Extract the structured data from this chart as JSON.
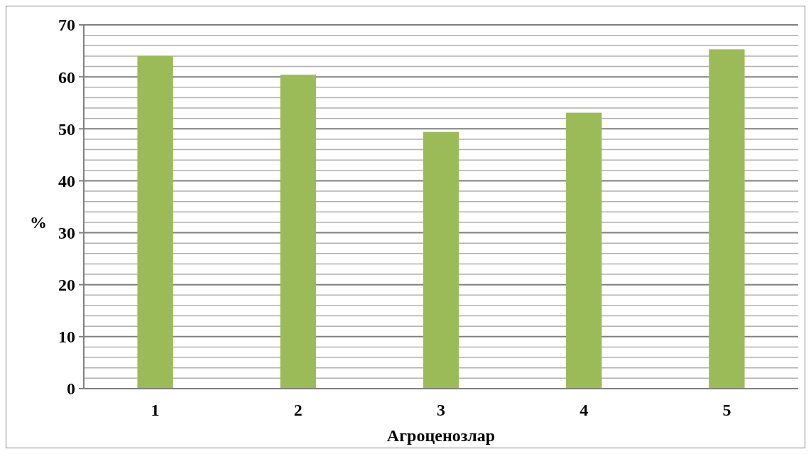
{
  "chart_data": {
    "type": "bar",
    "xlabel": "Агроценозлар",
    "ylabel": "%",
    "categories": [
      "1",
      "2",
      "3",
      "4",
      "5"
    ],
    "values": [
      64.0,
      60.4,
      49.4,
      53.1,
      65.3
    ],
    "color": "#9bbb59",
    "ylim": [
      0,
      70
    ],
    "yticks": [
      0,
      {
        "value": 2,
        "label": null
      },
      {
        "value": 4,
        "label": null
      },
      {
        "value": 6,
        "label": null
      },
      {
        "value": 8,
        "label": null
      },
      10,
      {
        "value": 12,
        "label": null
      },
      {
        "value": 14,
        "label": null
      },
      {
        "value": 16,
        "label": null
      },
      {
        "value": 18,
        "label": null
      },
      20,
      {
        "value": 22,
        "label": null
      },
      {
        "value": 24,
        "label": null
      },
      {
        "value": 26,
        "label": null
      },
      {
        "value": 28,
        "label": null
      },
      30,
      {
        "value": 32,
        "label": null
      },
      {
        "value": 34,
        "label": null
      },
      {
        "value": 36,
        "label": null
      },
      {
        "value": 38,
        "label": null
      },
      40,
      {
        "value": 42,
        "label": null
      },
      {
        "value": 44,
        "label": null
      },
      {
        "value": 46,
        "label": null
      },
      {
        "value": 48,
        "label": null
      },
      50,
      {
        "value": 52,
        "label": null
      },
      {
        "value": 54,
        "label": null
      },
      {
        "value": 56,
        "label": null
      },
      {
        "value": 58,
        "label": null
      },
      60,
      {
        "value": 62,
        "label": null
      },
      {
        "value": 64,
        "label": null
      },
      {
        "value": 66,
        "label": null
      },
      {
        "value": 68,
        "label": null
      },
      70
    ],
    "grid": true
  }
}
